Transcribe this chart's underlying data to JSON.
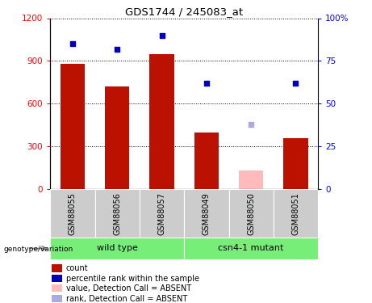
{
  "title": "GDS1744 / 245083_at",
  "samples": [
    "GSM88055",
    "GSM88056",
    "GSM88057",
    "GSM88049",
    "GSM88050",
    "GSM88051"
  ],
  "count_values": [
    880,
    720,
    950,
    400,
    null,
    360
  ],
  "count_absent": [
    null,
    null,
    null,
    null,
    130,
    null
  ],
  "rank_values": [
    85,
    82,
    90,
    62,
    null,
    62
  ],
  "rank_absent": [
    null,
    null,
    null,
    null,
    38,
    null
  ],
  "ylim_left": [
    0,
    1200
  ],
  "ylim_right": [
    0,
    100
  ],
  "yticks_left": [
    0,
    300,
    600,
    900,
    1200
  ],
  "ytick_labels_left": [
    "0",
    "300",
    "600",
    "900",
    "1200"
  ],
  "ytick_labels_right": [
    "0",
    "25",
    "50",
    "75",
    "100%"
  ],
  "bar_color": "#bb1100",
  "bar_absent_color": "#ffbbbb",
  "dot_color": "#0000bb",
  "dot_absent_color": "#aaaadd",
  "green_color": "#77ee77",
  "sample_bg_color": "#cccccc",
  "bar_width": 0.55,
  "dot_size": 18
}
